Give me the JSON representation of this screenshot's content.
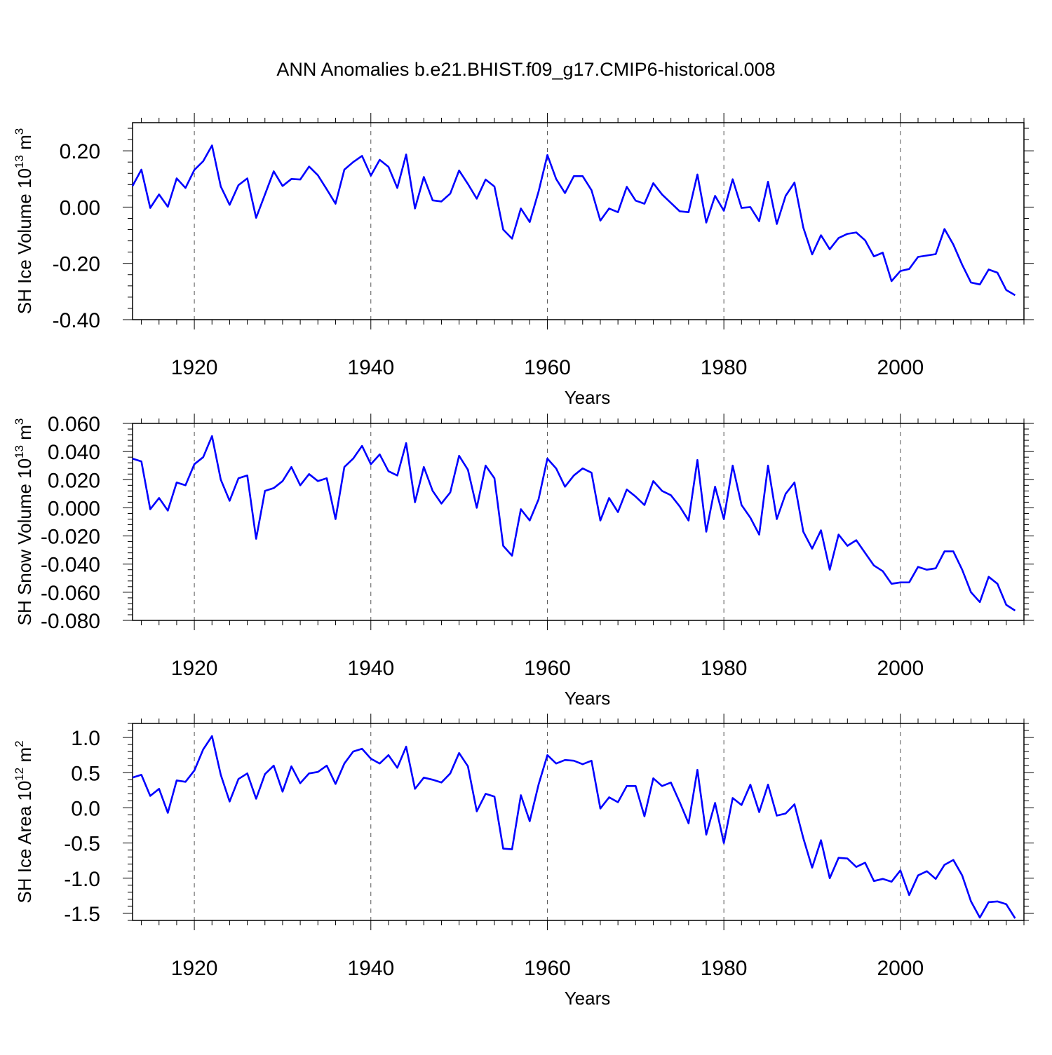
{
  "title": "ANN Anomalies b.e21.BHIST.f09_g17.CMIP6-historical.008",
  "line_color": "#0000ff",
  "chart_data": [
    {
      "type": "line",
      "ylabel": "SH Ice Volume 10",
      "yunit_exp": "13",
      "yunit_base": "m",
      "yunit_pow": "3",
      "xlabel": "Years",
      "xlim": [
        1913,
        2014
      ],
      "ylim": [
        -0.4,
        0.3
      ],
      "yticks": [
        -0.4,
        -0.2,
        0.0,
        0.2
      ],
      "ytick_labels": [
        "-0.40",
        "-0.20",
        "0.00",
        "0.20"
      ],
      "xticks": [
        1920,
        1940,
        1960,
        1980,
        2000
      ],
      "xtick_labels": [
        "1920",
        "1940",
        "1960",
        "1980",
        "2000"
      ],
      "grid_x": true,
      "x_start": 1913,
      "values": [
        0.075,
        0.133,
        -0.003,
        0.045,
        0.001,
        0.102,
        0.068,
        0.132,
        0.163,
        0.219,
        0.073,
        0.008,
        0.078,
        0.102,
        -0.038,
        0.045,
        0.127,
        0.075,
        0.1,
        0.098,
        0.144,
        0.113,
        0.063,
        0.012,
        0.133,
        0.16,
        0.182,
        0.112,
        0.168,
        0.143,
        0.068,
        0.187,
        -0.005,
        0.107,
        0.024,
        0.02,
        0.048,
        0.13,
        0.082,
        0.03,
        0.098,
        0.073,
        -0.08,
        -0.112,
        -0.005,
        -0.053,
        0.055,
        0.185,
        0.1,
        0.05,
        0.11,
        0.11,
        0.06,
        -0.048,
        -0.005,
        -0.018,
        0.072,
        0.023,
        0.012,
        0.085,
        0.045,
        0.015,
        -0.015,
        -0.018,
        0.116,
        -0.055,
        0.04,
        -0.013,
        0.099,
        -0.003,
        0.0,
        -0.05,
        0.09,
        -0.06,
        0.04,
        0.087,
        -0.073,
        -0.168,
        -0.1,
        -0.15,
        -0.11,
        -0.095,
        -0.09,
        -0.118,
        -0.175,
        -0.162,
        -0.263,
        -0.227,
        -0.22,
        -0.177,
        -0.172,
        -0.167,
        -0.078,
        -0.133,
        -0.205,
        -0.268,
        -0.275,
        -0.222,
        -0.233,
        -0.295,
        -0.313
      ]
    },
    {
      "type": "line",
      "ylabel": "SH Snow Volume 10",
      "yunit_exp": "13",
      "yunit_base": "m",
      "yunit_pow": "3",
      "xlabel": "Years",
      "xlim": [
        1913,
        2014
      ],
      "ylim": [
        -0.08,
        0.06
      ],
      "yticks": [
        -0.08,
        -0.06,
        -0.04,
        -0.02,
        0.0,
        0.02,
        0.04,
        0.06
      ],
      "ytick_labels": [
        "-0.080",
        "-0.060",
        "-0.040",
        "-0.020",
        "0.000",
        "0.020",
        "0.040",
        "0.060"
      ],
      "xticks": [
        1920,
        1940,
        1960,
        1980,
        2000
      ],
      "xtick_labels": [
        "1920",
        "1940",
        "1960",
        "1980",
        "2000"
      ],
      "grid_x": true,
      "x_start": 1913,
      "values": [
        0.035,
        0.033,
        -0.001,
        0.007,
        -0.002,
        0.018,
        0.016,
        0.031,
        0.036,
        0.051,
        0.02,
        0.005,
        0.021,
        0.023,
        -0.022,
        0.012,
        0.014,
        0.019,
        0.029,
        0.016,
        0.024,
        0.019,
        0.021,
        -0.008,
        0.029,
        0.035,
        0.044,
        0.031,
        0.038,
        0.026,
        0.023,
        0.046,
        0.004,
        0.029,
        0.012,
        0.003,
        0.011,
        0.037,
        0.027,
        0.0,
        0.03,
        0.021,
        -0.027,
        -0.034,
        -0.001,
        -0.009,
        0.006,
        0.035,
        0.028,
        0.015,
        0.023,
        0.028,
        0.025,
        -0.009,
        0.007,
        -0.003,
        0.013,
        0.008,
        0.002,
        0.019,
        0.012,
        0.009,
        0.001,
        -0.009,
        0.034,
        -0.017,
        0.015,
        -0.008,
        0.03,
        0.002,
        -0.007,
        -0.019,
        0.03,
        -0.008,
        0.01,
        0.018,
        -0.017,
        -0.029,
        -0.016,
        -0.044,
        -0.019,
        -0.027,
        -0.023,
        -0.032,
        -0.041,
        -0.045,
        -0.054,
        -0.053,
        -0.053,
        -0.042,
        -0.044,
        -0.043,
        -0.031,
        -0.031,
        -0.044,
        -0.06,
        -0.067,
        -0.049,
        -0.054,
        -0.069,
        -0.073
      ]
    },
    {
      "type": "line",
      "ylabel": "SH Ice Area 10",
      "yunit_exp": "12",
      "yunit_base": "m",
      "yunit_pow": "2",
      "xlabel": "Years",
      "xlim": [
        1913,
        2014
      ],
      "ylim": [
        -1.6,
        1.2
      ],
      "yticks": [
        -1.5,
        -1.0,
        -0.5,
        0.0,
        0.5,
        1.0
      ],
      "ytick_labels": [
        "-1.5",
        "-1.0",
        "-0.5",
        "0.0",
        "0.5",
        "1.0"
      ],
      "xticks": [
        1920,
        1940,
        1960,
        1980,
        2000
      ],
      "xtick_labels": [
        "1920",
        "1940",
        "1960",
        "1980",
        "2000"
      ],
      "grid_x": true,
      "x_start": 1913,
      "values": [
        0.43,
        0.47,
        0.17,
        0.27,
        -0.07,
        0.39,
        0.37,
        0.53,
        0.83,
        1.02,
        0.47,
        0.09,
        0.41,
        0.49,
        0.13,
        0.48,
        0.6,
        0.23,
        0.59,
        0.35,
        0.49,
        0.51,
        0.6,
        0.34,
        0.63,
        0.8,
        0.84,
        0.7,
        0.63,
        0.75,
        0.57,
        0.87,
        0.27,
        0.43,
        0.4,
        0.36,
        0.49,
        0.78,
        0.59,
        -0.05,
        0.2,
        0.16,
        -0.58,
        -0.59,
        0.18,
        -0.19,
        0.33,
        0.75,
        0.63,
        0.68,
        0.67,
        0.62,
        0.67,
        -0.01,
        0.15,
        0.08,
        0.31,
        0.31,
        -0.12,
        0.42,
        0.31,
        0.36,
        0.08,
        -0.22,
        0.54,
        -0.38,
        0.07,
        -0.5,
        0.14,
        0.04,
        0.33,
        -0.06,
        0.33,
        -0.11,
        -0.08,
        0.05,
        -0.43,
        -0.85,
        -0.46,
        -1.0,
        -0.71,
        -0.72,
        -0.84,
        -0.78,
        -1.04,
        -1.01,
        -1.05,
        -0.89,
        -1.24,
        -0.96,
        -0.9,
        -1.01,
        -0.81,
        -0.74,
        -0.96,
        -1.33,
        -1.56,
        -1.34,
        -1.33,
        -1.37,
        -1.57
      ]
    }
  ]
}
